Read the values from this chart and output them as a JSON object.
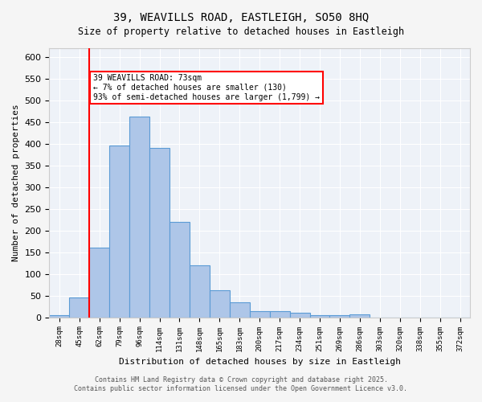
{
  "title_line1": "39, WEAVILLS ROAD, EASTLEIGH, SO50 8HQ",
  "title_line2": "Size of property relative to detached houses in Eastleigh",
  "xlabel": "Distribution of detached houses by size in Eastleigh",
  "ylabel": "Number of detached properties",
  "categories": [
    "28sqm",
    "45sqm",
    "62sqm",
    "79sqm",
    "96sqm",
    "114sqm",
    "131sqm",
    "148sqm",
    "165sqm",
    "183sqm",
    "200sqm",
    "217sqm",
    "234sqm",
    "251sqm",
    "269sqm",
    "286sqm",
    "303sqm",
    "320sqm",
    "338sqm",
    "355sqm",
    "372sqm"
  ],
  "values": [
    5,
    45,
    160,
    395,
    462,
    390,
    220,
    120,
    63,
    35,
    14,
    15,
    10,
    5,
    5,
    7,
    0,
    0,
    0,
    0,
    0
  ],
  "bar_color": "#aec6e8",
  "bar_edge_color": "#5b9bd5",
  "background_color": "#eef2f8",
  "grid_color": "#ffffff",
  "annotation_title": "39 WEAVILLS ROAD: 73sqm",
  "annotation_line1": "← 7% of detached houses are smaller (130)",
  "annotation_line2": "93% of semi-detached houses are larger (1,799) →",
  "redline_x": 1.5,
  "ylim": [
    0,
    620
  ],
  "yticks": [
    0,
    50,
    100,
    150,
    200,
    250,
    300,
    350,
    400,
    450,
    500,
    550,
    600
  ],
  "footer_line1": "Contains HM Land Registry data © Crown copyright and database right 2025.",
  "footer_line2": "Contains public sector information licensed under the Open Government Licence v3.0."
}
